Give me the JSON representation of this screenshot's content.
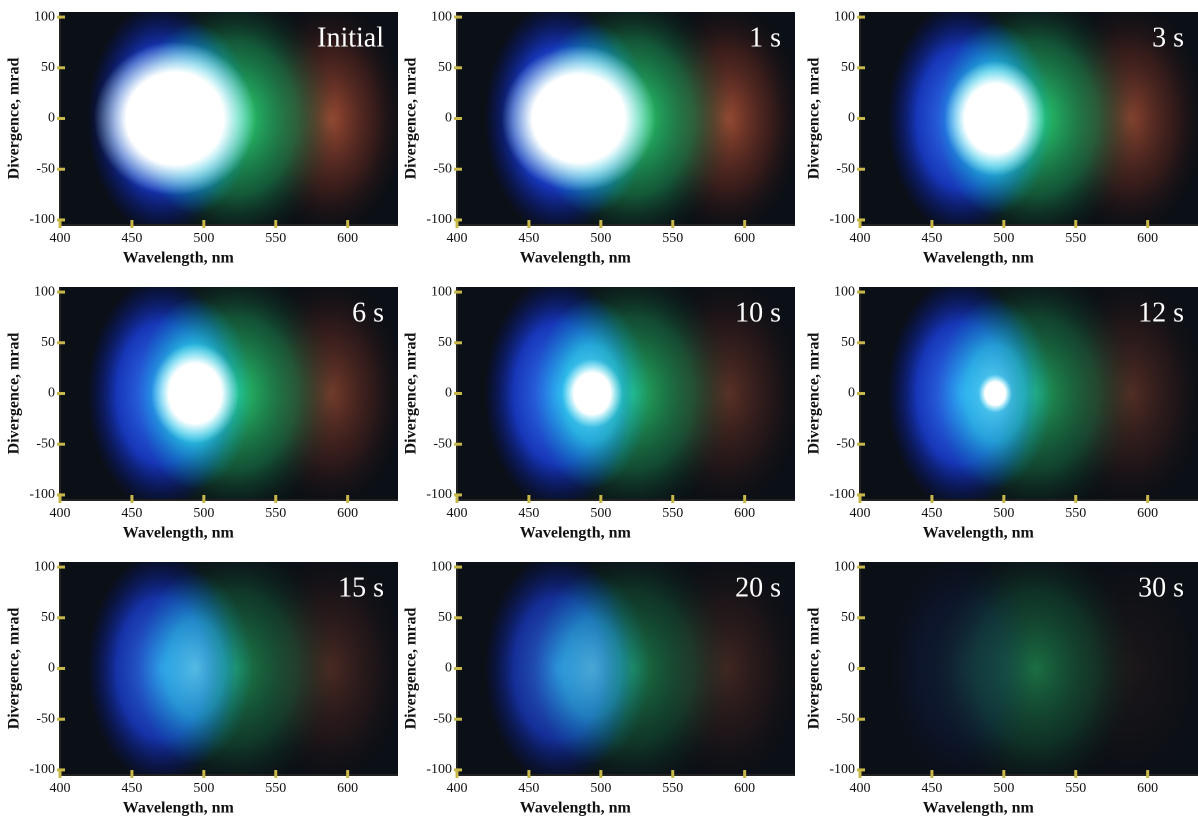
{
  "chart_data": [
    {
      "type": "image",
      "annotation": "Initial",
      "xlabel": "Wavelength, nm",
      "ylabel": "Divergence, mrad",
      "xlim": [
        400,
        635
      ],
      "ylim": [
        -105,
        105
      ],
      "xticks": [
        400,
        450,
        500,
        550,
        600
      ],
      "yticks": [
        -100,
        -50,
        0,
        50,
        100
      ]
    },
    {
      "type": "image",
      "annotation": "1 s",
      "xlabel": "Wavelength, nm",
      "ylabel": "Divergence, mrad",
      "xlim": [
        400,
        635
      ],
      "ylim": [
        -105,
        105
      ],
      "xticks": [
        400,
        450,
        500,
        550,
        600
      ],
      "yticks": [
        -100,
        -50,
        0,
        50,
        100
      ]
    },
    {
      "type": "image",
      "annotation": "3 s",
      "xlabel": "Wavelength, nm",
      "ylabel": "Divergence, mrad",
      "xlim": [
        400,
        635
      ],
      "ylim": [
        -105,
        105
      ],
      "xticks": [
        400,
        450,
        500,
        550,
        600
      ],
      "yticks": [
        -100,
        -50,
        0,
        50,
        100
      ]
    },
    {
      "type": "image",
      "annotation": "6 s",
      "xlabel": "Wavelength, nm",
      "ylabel": "Divergence, mrad",
      "xlim": [
        400,
        635
      ],
      "ylim": [
        -105,
        105
      ],
      "xticks": [
        400,
        450,
        500,
        550,
        600
      ],
      "yticks": [
        -100,
        -50,
        0,
        50,
        100
      ]
    },
    {
      "type": "image",
      "annotation": "10 s",
      "xlabel": "Wavelength, nm",
      "ylabel": "Divergence, mrad",
      "xlim": [
        400,
        635
      ],
      "ylim": [
        -105,
        105
      ],
      "xticks": [
        400,
        450,
        500,
        550,
        600
      ],
      "yticks": [
        -100,
        -50,
        0,
        50,
        100
      ]
    },
    {
      "type": "image",
      "annotation": "12 s",
      "xlabel": "Wavelength, nm",
      "ylabel": "Divergence, mrad",
      "xlim": [
        400,
        635
      ],
      "ylim": [
        -105,
        105
      ],
      "xticks": [
        400,
        450,
        500,
        550,
        600
      ],
      "yticks": [
        -100,
        -50,
        0,
        50,
        100
      ]
    },
    {
      "type": "image",
      "annotation": "15 s",
      "xlabel": "Wavelength, nm",
      "ylabel": "Divergence, mrad",
      "xlim": [
        400,
        635
      ],
      "ylim": [
        -105,
        105
      ],
      "xticks": [
        400,
        450,
        500,
        550,
        600
      ],
      "yticks": [
        -100,
        -50,
        0,
        50,
        100
      ]
    },
    {
      "type": "image",
      "annotation": "20 s",
      "xlabel": "Wavelength, nm",
      "ylabel": "Divergence, mrad",
      "xlim": [
        400,
        635
      ],
      "ylim": [
        -105,
        105
      ],
      "xticks": [
        400,
        450,
        500,
        550,
        600
      ],
      "yticks": [
        -100,
        -50,
        0,
        50,
        100
      ]
    },
    {
      "type": "image",
      "annotation": "30 s",
      "xlabel": "Wavelength, nm",
      "ylabel": "Divergence, mrad",
      "xlim": [
        400,
        635
      ],
      "ylim": [
        -105,
        105
      ],
      "xticks": [
        400,
        450,
        500,
        550,
        600
      ],
      "yticks": [
        -100,
        -50,
        0,
        50,
        100
      ]
    }
  ]
}
